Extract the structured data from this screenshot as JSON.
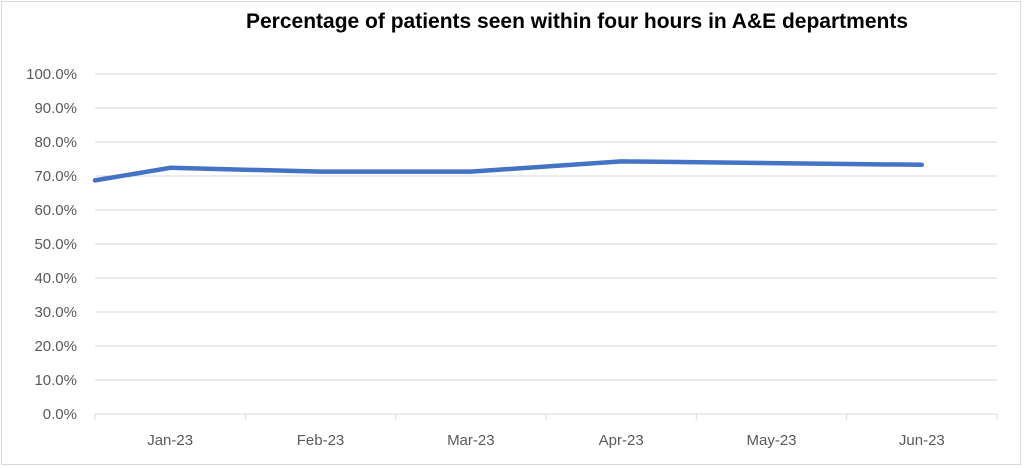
{
  "chart_data": {
    "type": "line",
    "title": "Percentage of patients seen within four hours in A&E departments",
    "xlabel": "",
    "ylabel": "",
    "categories": [
      "",
      "Jan-23",
      "Feb-23",
      "Mar-23",
      "Apr-23",
      "May-23",
      "Jun-23"
    ],
    "x_tick_labels": [
      "Jan-23",
      "Feb-23",
      "Mar-23",
      "Apr-23",
      "May-23",
      "Jun-23"
    ],
    "series": [
      {
        "values": [
          68.7,
          72.4,
          71.3,
          71.3,
          74.3,
          73.8,
          73.3
        ],
        "color": "#4472c4"
      }
    ],
    "ylim": [
      0,
      100
    ],
    "y_ticks": [
      0,
      10,
      20,
      30,
      40,
      50,
      60,
      70,
      80,
      90,
      100
    ],
    "y_tick_labels": [
      "0.0%",
      "10.0%",
      "20.0%",
      "30.0%",
      "40.0%",
      "50.0%",
      "60.0%",
      "70.0%",
      "80.0%",
      "90.0%",
      "100.0%"
    ],
    "grid": true,
    "legend": "none"
  }
}
